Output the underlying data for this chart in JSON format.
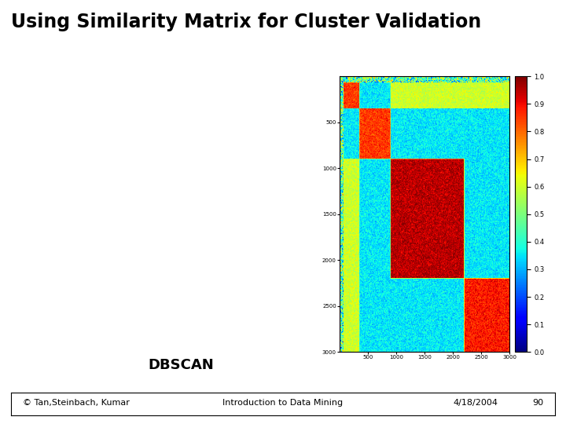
{
  "title": "Using Similarity Matrix for Cluster Validation",
  "subtitle": "DBSCAN",
  "footer_left": "© Tan,Steinbach, Kumar",
  "footer_center": "Introduction to Data Mining",
  "footer_right": "4/18/2004",
  "footer_page": "90",
  "title_fontsize": 17,
  "title_fontweight": "bold",
  "subtitle_fontsize": 13,
  "footer_fontsize": 8,
  "matrix_size": 3000,
  "num_clusters": 4,
  "cluster_boundaries": [
    0,
    350,
    900,
    2200,
    3000
  ],
  "background_color": "#ffffff",
  "title_bar1_color": "#00bcd4",
  "title_bar2_color": "#9c27b0",
  "footer_bar_color": "#000000",
  "colorbar_ticks": [
    0,
    0.1,
    0.2,
    0.3,
    0.4,
    0.5,
    0.6,
    0.7,
    0.8,
    0.9,
    1.0
  ]
}
